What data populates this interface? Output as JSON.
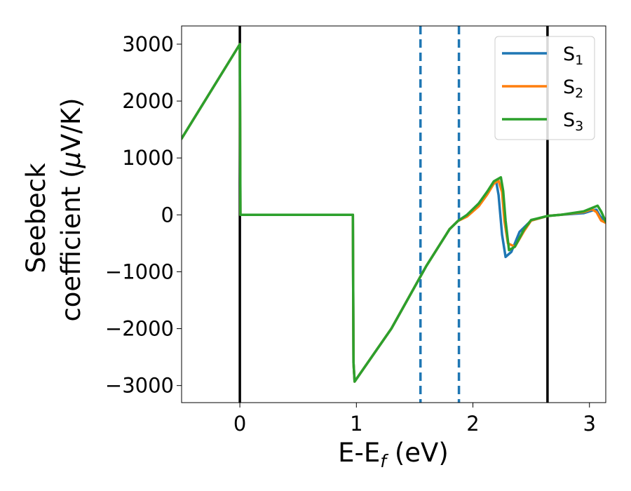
{
  "chart_data": {
    "type": "line",
    "title": "",
    "xlabel": "E-E",
    "xlabel_sub": "f",
    "xlabel_unit": " (eV)",
    "ylabel_line1": "Seebeck",
    "ylabel_line2": "coefficient  (",
    "ylabel_mu": "μ",
    "ylabel_unit": "V/K)",
    "xlim": [
      -0.5,
      3.14
    ],
    "ylim": [
      -3300,
      3320
    ],
    "xticks": [
      {
        "value": 0,
        "label": "0"
      },
      {
        "value": 1,
        "label": "1"
      },
      {
        "value": 2,
        "label": "2"
      },
      {
        "value": 3,
        "label": "3"
      }
    ],
    "yticks": [
      {
        "value": 3000,
        "label": "3000"
      },
      {
        "value": 2000,
        "label": "2000"
      },
      {
        "value": 1000,
        "label": "1000"
      },
      {
        "value": 0,
        "label": "0"
      },
      {
        "value": -1000,
        "label": "−1000"
      },
      {
        "value": -2000,
        "label": "−2000"
      },
      {
        "value": -3000,
        "label": "−3000"
      }
    ],
    "grid": false,
    "legend": {
      "placement": "top-right",
      "entries": [
        {
          "base": "S",
          "sub": "1",
          "color": "#1f77b4"
        },
        {
          "base": "S",
          "sub": "2",
          "color": "#ff7f0e"
        },
        {
          "base": "S",
          "sub": "3",
          "color": "#2ca02c"
        }
      ]
    },
    "vlines": [
      {
        "x": 0,
        "style": "solid",
        "color": "#000000"
      },
      {
        "x": 2.64,
        "style": "solid",
        "color": "#000000"
      },
      {
        "x": 1.55,
        "style": "dashed",
        "color": "#1f77b4"
      },
      {
        "x": 1.88,
        "style": "dashed",
        "color": "#1f77b4"
      }
    ],
    "series": [
      {
        "color": "#1f77b4",
        "x": [
          -0.5,
          0,
          0.005,
          0.97,
          0.975,
          0.985,
          1.3,
          1.6,
          1.8,
          1.87,
          1.95,
          2.05,
          2.12,
          2.18,
          2.2,
          2.22,
          2.25,
          2.28,
          2.33,
          2.4,
          2.5,
          2.64,
          2.75,
          2.95,
          3.03,
          3.06,
          3.09,
          3.14
        ],
        "y": [
          1340,
          3000,
          0,
          0,
          -2600,
          -2930,
          -2000,
          -900,
          -250,
          -110,
          0,
          200,
          400,
          560,
          580,
          350,
          -350,
          -740,
          -650,
          -300,
          -100,
          -20,
          0,
          30,
          80,
          90,
          -20,
          -130
        ]
      },
      {
        "color": "#ff7f0e",
        "x": [
          -0.5,
          0,
          0.005,
          0.97,
          0.975,
          0.985,
          1.3,
          1.6,
          1.8,
          1.87,
          1.95,
          2.05,
          2.12,
          2.18,
          2.22,
          2.25,
          2.27,
          2.3,
          2.36,
          2.44,
          2.5,
          2.64,
          2.75,
          2.95,
          3.02,
          3.06,
          3.1,
          3.14
        ],
        "y": [
          1340,
          3000,
          0,
          0,
          -2600,
          -2930,
          -2000,
          -900,
          -250,
          -110,
          -30,
          150,
          350,
          550,
          600,
          400,
          -100,
          -500,
          -560,
          -280,
          -100,
          -20,
          0,
          50,
          100,
          50,
          -100,
          -140
        ]
      },
      {
        "color": "#2ca02c",
        "x": [
          -0.5,
          0,
          0.005,
          0.97,
          0.975,
          0.985,
          1.3,
          1.6,
          1.8,
          1.87,
          1.95,
          2.05,
          2.12,
          2.18,
          2.24,
          2.26,
          2.28,
          2.31,
          2.36,
          2.44,
          2.5,
          2.64,
          2.75,
          2.95,
          3.02,
          3.07,
          3.1,
          3.14
        ],
        "y": [
          1340,
          3000,
          0,
          0,
          -2600,
          -2930,
          -2000,
          -900,
          -250,
          -110,
          0,
          200,
          400,
          590,
          660,
          420,
          -100,
          -620,
          -560,
          -250,
          -90,
          -20,
          0,
          60,
          120,
          160,
          60,
          -120
        ]
      }
    ]
  }
}
